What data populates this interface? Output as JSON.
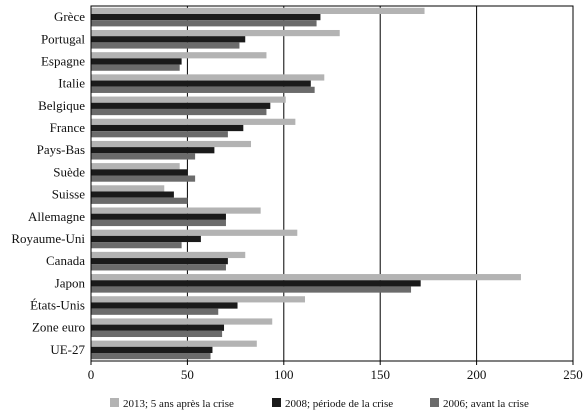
{
  "chart_data": {
    "type": "bar",
    "orientation": "horizontal",
    "categories": [
      "Grèce",
      "Portugal",
      "Espagne",
      "Italie",
      "Belgique",
      "France",
      "Pays-Bas",
      "Suède",
      "Suisse",
      "Allemagne",
      "Royaume-Uni",
      "Canada",
      "Japon",
      "États-Unis",
      "Zone euro",
      "UE-27"
    ],
    "series": [
      {
        "name": "2013; 5 ans après la crise",
        "color": "#b3b3b3",
        "values": [
          173,
          129,
          91,
          121,
          101,
          106,
          83,
          46,
          38,
          88,
          107,
          80,
          223,
          111,
          94,
          86
        ]
      },
      {
        "name": "2008; période de la crise",
        "color": "#1a1a1a",
        "values": [
          119,
          80,
          47,
          114,
          93,
          79,
          64,
          50,
          43,
          70,
          57,
          71,
          171,
          76,
          69,
          63
        ]
      },
      {
        "name": "2006; avant la crise",
        "color": "#6b6b6b",
        "values": [
          117,
          77,
          46,
          116,
          91,
          71,
          54,
          54,
          50,
          70,
          47,
          70,
          166,
          66,
          68,
          62
        ]
      }
    ],
    "xlim": [
      0,
      250
    ],
    "xticks": [
      0,
      50,
      100,
      150,
      200,
      250
    ],
    "grid": "vertical",
    "legend_position": "bottom"
  }
}
